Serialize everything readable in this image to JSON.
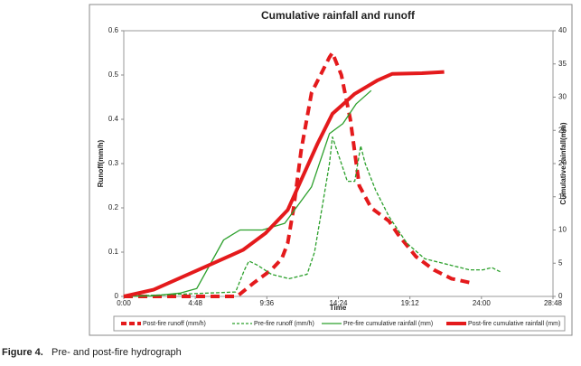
{
  "chart_data": {
    "type": "line",
    "title": "Cumulative rainfall and runoff",
    "x_label": "Time",
    "y_label": "Runoff(mm/h)",
    "y2_label": "Cumulative rainfall(mm)",
    "xlim": [
      0,
      28.8
    ],
    "xticks": [
      {
        "value": 0,
        "label": "0:00"
      },
      {
        "value": 4.8,
        "label": "4:48"
      },
      {
        "value": 9.6,
        "label": "9:36"
      },
      {
        "value": 14.4,
        "label": "14:24"
      },
      {
        "value": 19.2,
        "label": "19:12"
      },
      {
        "value": 24,
        "label": "24:00"
      },
      {
        "value": 28.8,
        "label": "28:48"
      }
    ],
    "ylim": [
      0,
      0.6
    ],
    "yticks": [
      {
        "value": 0,
        "label": "0"
      },
      0.1,
      0.2,
      0.3,
      0.4,
      0.5,
      0.6
    ],
    "y2lim": [
      0,
      40
    ],
    "y2ticks": [
      0,
      5,
      10,
      15,
      20,
      25,
      30,
      35,
      40
    ],
    "grid": false,
    "series": [
      {
        "name": "Post-fire runoff (mm/h)",
        "color": "#e41a1c",
        "dashed": true,
        "width": 4,
        "x": [
          0,
          7.6,
          8.7,
          9.9,
          10.6,
          11,
          11.4,
          11.9,
          12.6,
          13.2,
          13.8,
          14,
          14.6,
          15.2,
          15.8,
          16.6,
          17.8,
          18.4,
          19.6,
          20.8,
          22,
          23.4
        ],
        "values": [
          0,
          0,
          0.03,
          0.06,
          0.085,
          0.12,
          0.2,
          0.33,
          0.46,
          0.5,
          0.54,
          0.55,
          0.5,
          0.4,
          0.25,
          0.2,
          0.17,
          0.14,
          0.09,
          0.06,
          0.04,
          0.03
        ]
      },
      {
        "name": "Pre-fire runoff (mm/h)",
        "color": "#2ca02c",
        "dashed": true,
        "width": 1.3,
        "x": [
          0,
          7.5,
          8.1,
          8.4,
          9,
          9.9,
          11.1,
          12.3,
          12.8,
          13.3,
          13.8,
          14,
          14.4,
          15,
          15.5,
          15.9,
          16.2,
          16.9,
          17.8,
          19,
          20.2,
          22,
          23.2,
          24.1,
          24.7,
          25.3
        ],
        "values": [
          0,
          0.01,
          0.06,
          0.08,
          0.07,
          0.05,
          0.04,
          0.05,
          0.1,
          0.2,
          0.3,
          0.36,
          0.32,
          0.26,
          0.26,
          0.34,
          0.3,
          0.24,
          0.18,
          0.12,
          0.085,
          0.07,
          0.06,
          0.06,
          0.065,
          0.055
        ]
      },
      {
        "name": "Pre-fire cumulative rainfall (mm)",
        "color": "#2ca02c",
        "dashed": false,
        "width": 1.3,
        "axis": "y2",
        "x": [
          0,
          2,
          3.8,
          4.9,
          6.7,
          7.8,
          9.3,
          10.8,
          12.6,
          13.8,
          14.7,
          15.6,
          16.6
        ],
        "values": [
          0,
          0.1,
          0.5,
          1.2,
          8.5,
          10,
          10,
          11,
          16.5,
          24.5,
          26,
          29,
          31
        ]
      },
      {
        "name": "Post-fire cumulative rainfall (mm)",
        "color": "#e41a1c",
        "dashed": false,
        "width": 4,
        "axis": "y2",
        "x": [
          0,
          2,
          4,
          6,
          8,
          9.5,
          11,
          12,
          13,
          14,
          15.5,
          17,
          18,
          20,
          21.5
        ],
        "values": [
          0,
          1,
          3,
          5,
          7,
          9.5,
          13,
          18,
          23,
          27.5,
          30.5,
          32.5,
          33.5,
          33.6,
          33.8
        ]
      }
    ],
    "figure_label": "Figure 4.",
    "caption": "Pre- and post-fire hydrograph"
  }
}
